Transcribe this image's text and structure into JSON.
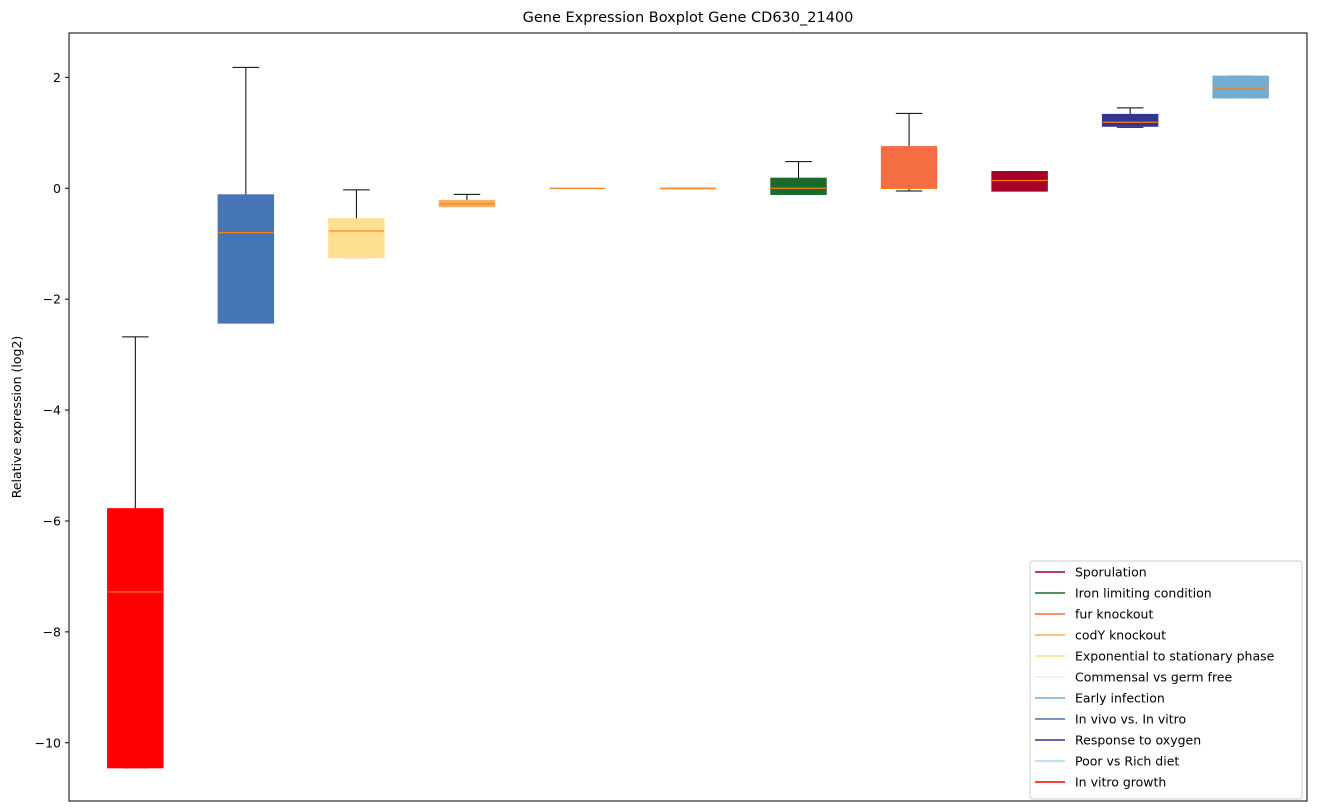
{
  "chart_data": {
    "type": "boxplot",
    "title": "Gene Expression Boxplot Gene CD630_21400",
    "xlabel": "",
    "ylabel": "Relative expression (log2)",
    "ylim": [
      -11.05,
      2.8
    ],
    "yticks": [
      -10,
      -8,
      -6,
      -4,
      -2,
      0,
      2
    ],
    "ytick_labels": [
      "−10",
      "−8",
      "−6",
      "−4",
      "−2",
      "0",
      "2"
    ],
    "grid": false,
    "legend_position": "lower-right",
    "median_color": "#ff7f0e",
    "boxes": [
      {
        "series": "In vitro growth",
        "color": "#ff0000",
        "whislo": -10.45,
        "q1": -10.45,
        "med": -7.28,
        "q3": -5.78,
        "whishi": -2.68
      },
      {
        "series": "In vivo vs. In vitro",
        "color": "#4575b4",
        "whislo": -2.43,
        "q1": -2.43,
        "med": -0.8,
        "q3": -0.12,
        "whishi": 2.18
      },
      {
        "series": "Exponential to stationary phase",
        "color": "#fee090",
        "whislo": -1.25,
        "q1": -1.25,
        "med": -0.77,
        "q3": -0.55,
        "whishi": -0.03
      },
      {
        "series": "codY knockout",
        "color": "#fdae61",
        "whislo": -0.33,
        "q1": -0.33,
        "med": -0.28,
        "q3": -0.22,
        "whishi": -0.11
      },
      {
        "series": "Commensal vs germ free",
        "color": "#e0f3f8",
        "whislo": 0.0,
        "q1": 0.0,
        "med": 0.0,
        "q3": 0.0,
        "whishi": 0.0
      },
      {
        "series": "Poor vs Rich diet",
        "color": "#abd9e9",
        "whislo": 0.0,
        "q1": 0.0,
        "med": 0.0,
        "q3": 0.0,
        "whishi": 0.0
      },
      {
        "series": "Iron limiting condition",
        "color": "#1a6b2a",
        "whislo": -0.11,
        "q1": -0.11,
        "med": 0.0,
        "q3": 0.18,
        "whishi": 0.48
      },
      {
        "series": "fur knockout",
        "color": "#f46d43",
        "whislo": -0.05,
        "q1": 0.0,
        "med": 0.0,
        "q3": 0.75,
        "whishi": 1.35
      },
      {
        "series": "Sporulation",
        "color": "#a50026",
        "whislo": -0.05,
        "q1": -0.05,
        "med": 0.14,
        "q3": 0.3,
        "whishi": 0.3
      },
      {
        "series": "Response to oxygen",
        "color": "#313695",
        "whislo": 1.1,
        "q1": 1.12,
        "med": 1.19,
        "q3": 1.33,
        "whishi": 1.45
      },
      {
        "series": "Early infection",
        "color": "#74add1",
        "whislo": 1.63,
        "q1": 1.63,
        "med": 1.79,
        "q3": 2.02,
        "whishi": 2.02
      }
    ],
    "legend": [
      {
        "label": "Sporulation",
        "color": "#a50026"
      },
      {
        "label": "Iron limiting condition",
        "color": "#1a6b2a"
      },
      {
        "label": "fur knockout",
        "color": "#f46d43"
      },
      {
        "label": "codY knockout",
        "color": "#fdae61"
      },
      {
        "label": "Exponential to stationary phase",
        "color": "#fee090"
      },
      {
        "label": "Commensal vs germ free",
        "color": "#e0f3f8"
      },
      {
        "label": "Early infection",
        "color": "#74add1"
      },
      {
        "label": "In vivo vs. In vitro",
        "color": "#4575b4"
      },
      {
        "label": "Response to oxygen",
        "color": "#313695"
      },
      {
        "label": "Poor vs Rich diet",
        "color": "#abd9e9"
      },
      {
        "label": "In vitro growth",
        "color": "#ff0000"
      }
    ]
  }
}
